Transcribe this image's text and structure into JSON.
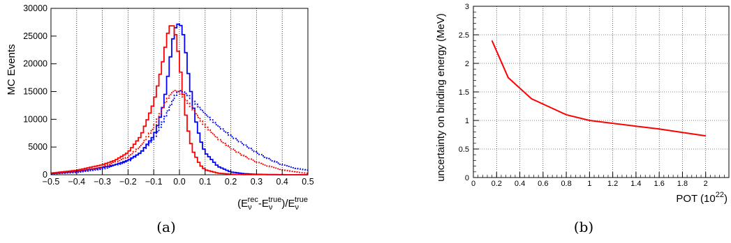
{
  "chart_data": [
    {
      "type": "line",
      "panel_caption": "(a)",
      "ylabel": "MC Events",
      "xlabel_parts": {
        "open": "(E",
        "nu1": "ν",
        "rec": "rec",
        "minus": "-E",
        "nu2": "ν",
        "true1": "true",
        "close": ")/E",
        "nu3": "ν",
        "true2": "true"
      },
      "xlim": [
        -0.5,
        0.5
      ],
      "ylim": [
        0,
        30000
      ],
      "x_ticks": [
        "−0.5",
        "−0.4",
        "−0.3",
        "−0.2",
        "−0.1",
        "0.0",
        "0.1",
        "0.2",
        "0.3",
        "0.4",
        "0.5"
      ],
      "y_ticks": [
        "0",
        "5000",
        "10000",
        "15000",
        "20000",
        "25000",
        "30000"
      ],
      "grid": "vertical dotted",
      "series": [
        {
          "color": "#0000ff",
          "style": "solid",
          "x": [
            -0.5,
            -0.4,
            -0.3,
            -0.25,
            -0.2,
            -0.15,
            -0.1,
            -0.08,
            -0.06,
            -0.05,
            -0.04,
            -0.03,
            -0.02,
            -0.01,
            0.0,
            0.01,
            0.02,
            0.03,
            0.04,
            0.05,
            0.06,
            0.08,
            0.1,
            0.15,
            0.2,
            0.25,
            0.3,
            0.4,
            0.5
          ],
          "y": [
            200,
            600,
            1300,
            1800,
            2600,
            4000,
            7000,
            9500,
            13000,
            16000,
            19500,
            23000,
            26000,
            27000,
            27300,
            26500,
            24000,
            20000,
            16500,
            13500,
            10500,
            6500,
            4000,
            1500,
            500,
            200,
            80,
            20,
            0
          ]
        },
        {
          "color": "#ff0000",
          "style": "solid",
          "x": [
            -0.5,
            -0.4,
            -0.3,
            -0.25,
            -0.2,
            -0.15,
            -0.12,
            -0.1,
            -0.08,
            -0.06,
            -0.05,
            -0.04,
            -0.03,
            -0.02,
            -0.01,
            0.0,
            0.01,
            0.02,
            0.03,
            0.05,
            0.08,
            0.1,
            0.15,
            0.2,
            0.25,
            0.3,
            0.4,
            0.5
          ],
          "y": [
            300,
            800,
            1800,
            2600,
            4000,
            7000,
            10500,
            13000,
            17000,
            21500,
            24500,
            26500,
            27200,
            26500,
            24000,
            20500,
            16500,
            12500,
            9000,
            4500,
            1800,
            900,
            300,
            100,
            30,
            10,
            0,
            0
          ]
        },
        {
          "color": "#0000ff",
          "style": "dotted",
          "x": [
            -0.5,
            -0.4,
            -0.3,
            -0.2,
            -0.15,
            -0.1,
            -0.07,
            -0.05,
            -0.03,
            -0.01,
            0.0,
            0.01,
            0.03,
            0.05,
            0.08,
            0.1,
            0.15,
            0.2,
            0.25,
            0.3,
            0.35,
            0.4,
            0.45,
            0.5
          ],
          "y": [
            150,
            400,
            1000,
            2400,
            4000,
            6500,
            9000,
            11000,
            13000,
            14800,
            15200,
            15100,
            14500,
            13500,
            12000,
            11000,
            8800,
            7000,
            5500,
            4000,
            2800,
            1800,
            1200,
            800
          ]
        },
        {
          "color": "#ff0000",
          "style": "dotted",
          "x": [
            -0.5,
            -0.4,
            -0.3,
            -0.2,
            -0.15,
            -0.1,
            -0.07,
            -0.05,
            -0.03,
            -0.02,
            -0.01,
            0.0,
            0.02,
            0.05,
            0.08,
            0.1,
            0.15,
            0.2,
            0.25,
            0.3,
            0.35,
            0.4,
            0.45,
            0.5
          ],
          "y": [
            200,
            600,
            1400,
            3200,
            5200,
            8500,
            11500,
            13500,
            14800,
            15200,
            15200,
            14800,
            13800,
            12000,
            10000,
            8800,
            6500,
            4800,
            3400,
            2300,
            1500,
            900,
            500,
            250
          ]
        }
      ]
    },
    {
      "type": "line",
      "panel_caption": "(b)",
      "ylabel": "uncertainty on binding energy (MeV)",
      "xlabel_parts": {
        "main": "POT (10",
        "exp": "22",
        "close": ")"
      },
      "xlim": [
        0,
        2.2
      ],
      "ylim": [
        0,
        3
      ],
      "x_ticks": [
        "0",
        "0.2",
        "0.4",
        "0.6",
        "0.8",
        "1",
        "1.2",
        "1.4",
        "1.6",
        "1.8",
        "2"
      ],
      "y_ticks": [
        "0",
        "0.5",
        "1",
        "1.5",
        "2",
        "2.5",
        "3"
      ],
      "grid": "both dotted",
      "series": [
        {
          "color": "#ff0000",
          "style": "solid",
          "x": [
            0.16,
            0.3,
            0.5,
            0.8,
            1.0,
            1.2,
            1.4,
            1.6,
            1.8,
            2.0
          ],
          "y": [
            2.4,
            1.75,
            1.38,
            1.1,
            1.0,
            0.95,
            0.9,
            0.85,
            0.79,
            0.73
          ]
        }
      ]
    }
  ]
}
